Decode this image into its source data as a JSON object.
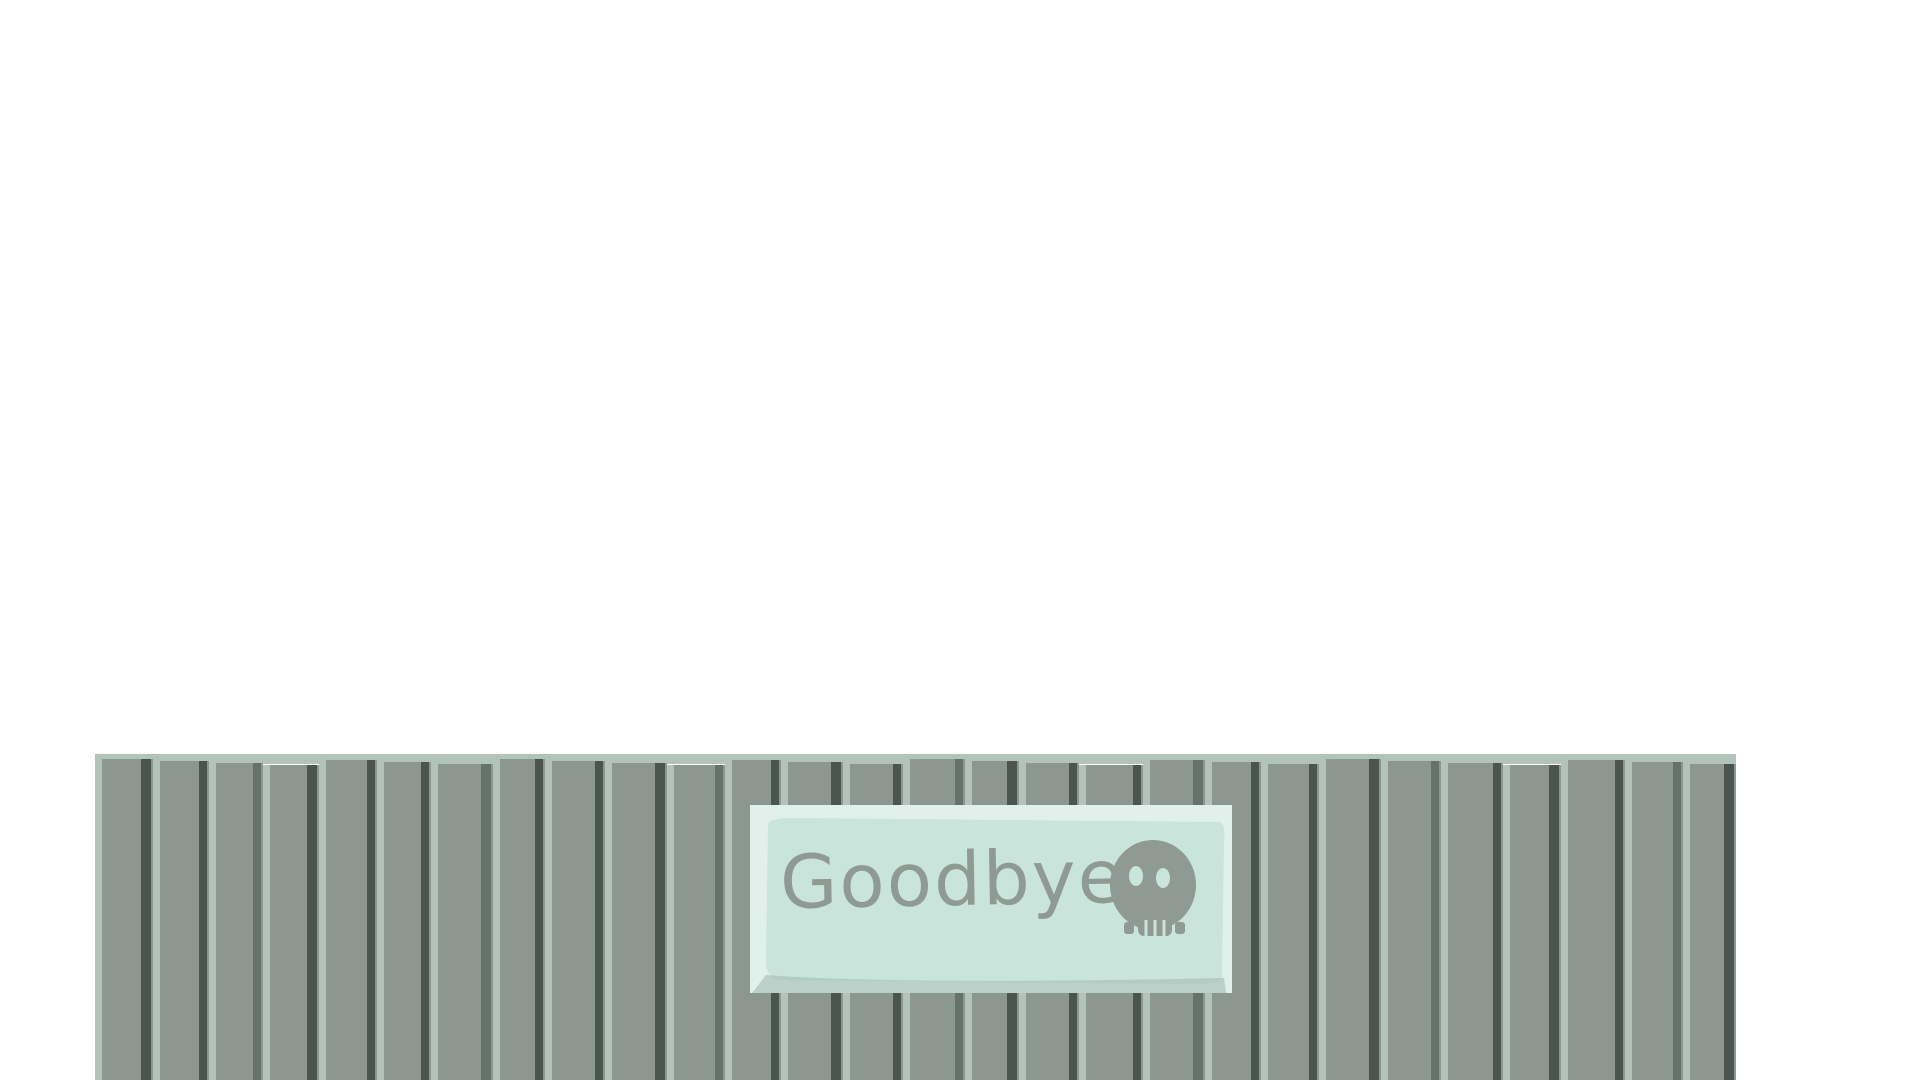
{
  "scene": {
    "type": "game-ending-screen"
  },
  "sign": {
    "text": "Goodbye",
    "icon": "skull-icon"
  },
  "colors": {
    "background": "#ffffff",
    "fence_board": "#8c9792",
    "fence_light": "#b1c3bb",
    "fence_shadow": "#4a5550",
    "fence_mid_shadow": "#66736d",
    "sign_board": "#c9e4da",
    "sign_border": "#dff1ea",
    "sign_edge": "#a9c2b9",
    "sign_ink": "#909a94"
  }
}
